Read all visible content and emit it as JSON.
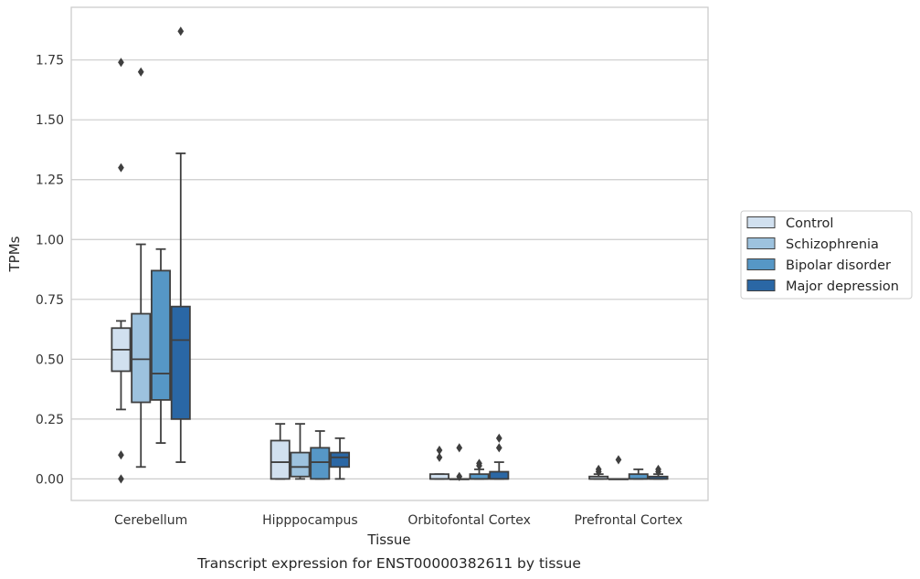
{
  "chart_data": {
    "type": "boxplot",
    "title": "",
    "caption": "Transcript expression for ENST00000382611 by tissue",
    "xlabel": "Tissue",
    "ylabel": "TPMs",
    "ylim": [
      -0.09,
      1.97
    ],
    "yticks": [
      "0.00",
      "0.25",
      "0.50",
      "0.75",
      "1.00",
      "1.25",
      "1.50",
      "1.75"
    ],
    "ytick_values": [
      0,
      0.25,
      0.5,
      0.75,
      1.0,
      1.25,
      1.5,
      1.75
    ],
    "grid": "horizontal",
    "legend_position": "right",
    "categories": [
      "Cerebellum",
      "Hipppocampus",
      "Orbitofontal Cortex",
      "Prefrontal Cortex"
    ],
    "series": [
      {
        "name": "Control",
        "color": "#d1e0ef",
        "boxes": [
          {
            "whislo": 0.29,
            "q1": 0.45,
            "med": 0.54,
            "q3": 0.63,
            "whishi": 0.66,
            "fliers": [
              1.74,
              1.3,
              0.1,
              0.0
            ]
          },
          {
            "whislo": 0.0,
            "q1": 0.0,
            "med": 0.07,
            "q3": 0.16,
            "whishi": 0.23,
            "fliers": []
          },
          {
            "whislo": 0.0,
            "q1": 0.0,
            "med": 0.0,
            "q3": 0.02,
            "whishi": 0.02,
            "fliers": [
              0.12,
              0.09
            ]
          },
          {
            "whislo": 0.0,
            "q1": 0.0,
            "med": 0.0,
            "q3": 0.01,
            "whishi": 0.02,
            "fliers": [
              0.04,
              0.03
            ]
          }
        ]
      },
      {
        "name": "Schizophrenia",
        "color": "#9dc2de",
        "boxes": [
          {
            "whislo": 0.05,
            "q1": 0.32,
            "med": 0.5,
            "q3": 0.69,
            "whishi": 0.98,
            "fliers": [
              1.7
            ]
          },
          {
            "whislo": 0.0,
            "q1": 0.01,
            "med": 0.05,
            "q3": 0.11,
            "whishi": 0.23,
            "fliers": []
          },
          {
            "whislo": 0.0,
            "q1": 0.0,
            "med": 0.0,
            "q3": 0.0,
            "whishi": 0.0,
            "fliers": [
              0.13,
              0.01
            ]
          },
          {
            "whislo": 0.0,
            "q1": 0.0,
            "med": 0.0,
            "q3": 0.0,
            "whishi": 0.0,
            "fliers": [
              0.08
            ]
          }
        ]
      },
      {
        "name": "Bipolar disorder",
        "color": "#5697c6",
        "boxes": [
          {
            "whislo": 0.15,
            "q1": 0.33,
            "med": 0.44,
            "q3": 0.87,
            "whishi": 0.96,
            "fliers": []
          },
          {
            "whislo": 0.0,
            "q1": 0.0,
            "med": 0.07,
            "q3": 0.13,
            "whishi": 0.2,
            "fliers": []
          },
          {
            "whislo": 0.0,
            "q1": 0.0,
            "med": 0.0,
            "q3": 0.02,
            "whishi": 0.04,
            "fliers": [
              0.065,
              0.055
            ]
          },
          {
            "whislo": 0.0,
            "q1": 0.0,
            "med": 0.0,
            "q3": 0.02,
            "whishi": 0.04,
            "fliers": []
          }
        ]
      },
      {
        "name": "Major depression",
        "color": "#2a67a5",
        "boxes": [
          {
            "whislo": 0.07,
            "q1": 0.25,
            "med": 0.58,
            "q3": 0.72,
            "whishi": 1.36,
            "fliers": [
              1.87
            ]
          },
          {
            "whislo": 0.0,
            "q1": 0.05,
            "med": 0.09,
            "q3": 0.11,
            "whishi": 0.17,
            "fliers": []
          },
          {
            "whislo": 0.0,
            "q1": 0.0,
            "med": 0.0,
            "q3": 0.03,
            "whishi": 0.07,
            "fliers": [
              0.17,
              0.13
            ]
          },
          {
            "whislo": 0.0,
            "q1": 0.0,
            "med": 0.0,
            "q3": 0.01,
            "whishi": 0.02,
            "fliers": [
              0.04,
              0.03
            ]
          }
        ]
      }
    ]
  }
}
